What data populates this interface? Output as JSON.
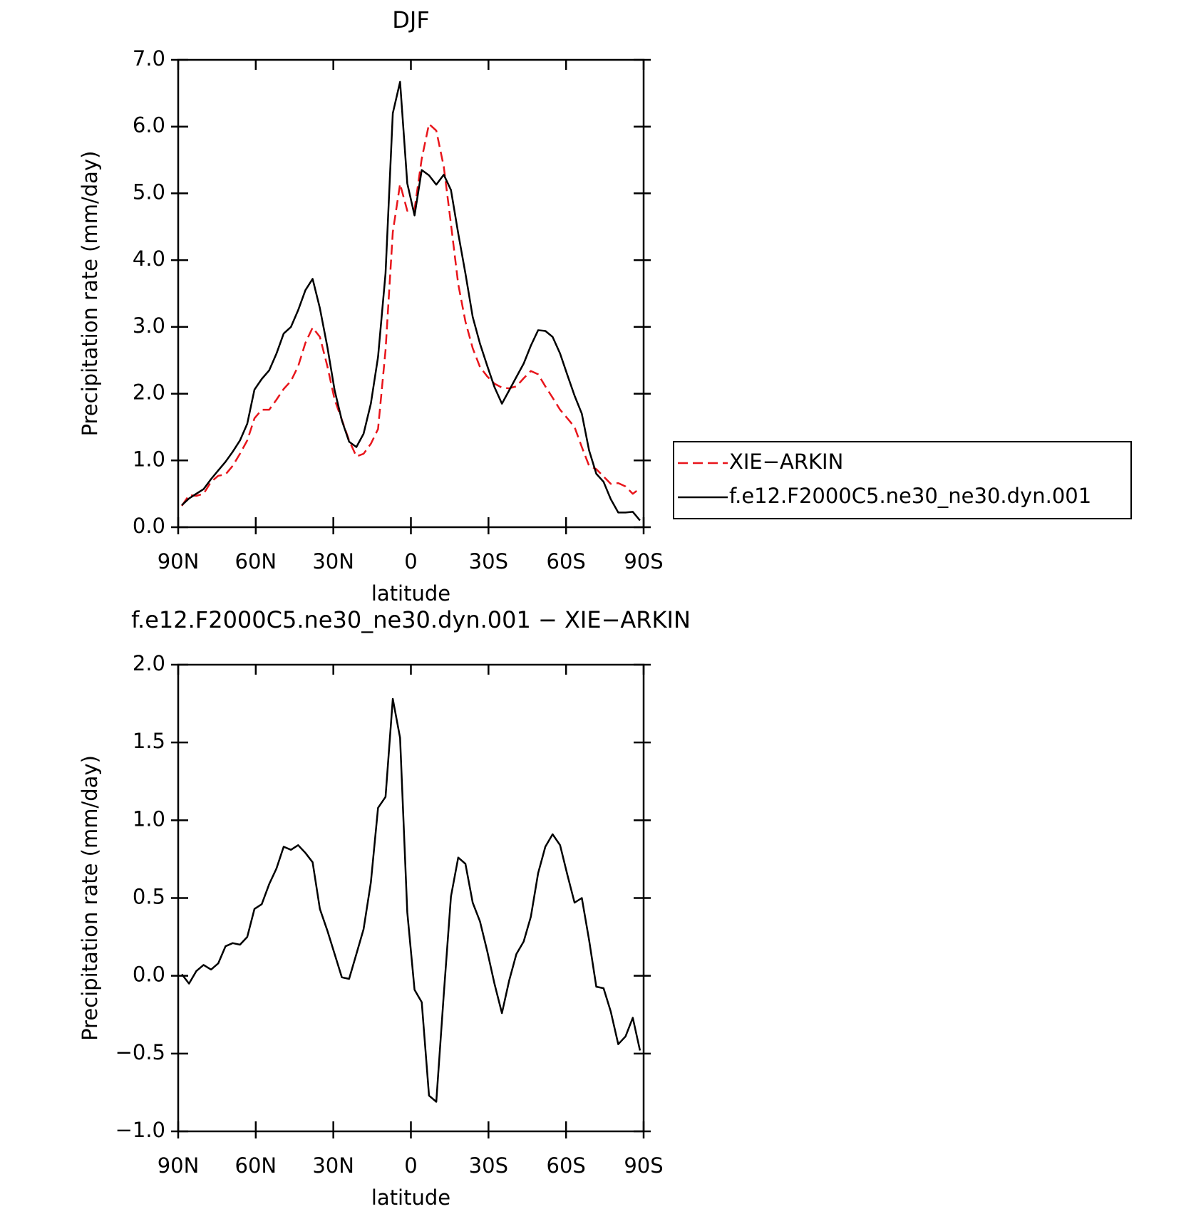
{
  "chart_data": [
    {
      "type": "line",
      "title": "DJF",
      "xlabel": "latitude",
      "ylabel": "Precipitation rate (mm/day)",
      "x": [
        88.6,
        85.8,
        83.0,
        80.2,
        77.3,
        74.5,
        71.7,
        68.9,
        66.1,
        63.3,
        60.5,
        57.7,
        54.8,
        52.0,
        49.2,
        46.4,
        43.6,
        40.8,
        38.0,
        35.2,
        32.3,
        29.5,
        26.7,
        23.9,
        21.1,
        18.3,
        15.5,
        12.7,
        9.8,
        7.0,
        4.2,
        1.4,
        -1.4,
        -4.2,
        -7.0,
        -9.8,
        -12.7,
        -15.5,
        -18.3,
        -21.1,
        -23.9,
        -26.7,
        -29.5,
        -32.3,
        -35.2,
        -38.0,
        -40.8,
        -43.6,
        -46.4,
        -49.2,
        -52.0,
        -54.8,
        -57.7,
        -60.5,
        -63.3,
        -66.1,
        -68.9,
        -71.7,
        -74.5,
        -77.3,
        -80.2,
        -83.0,
        -85.8,
        -88.6
      ],
      "series": [
        {
          "name": "XIE−ARKIN",
          "color": "#e8151b",
          "dash": true,
          "values": [
            0.32,
            0.48,
            0.47,
            0.5,
            0.68,
            0.77,
            0.79,
            0.92,
            1.1,
            1.3,
            1.63,
            1.76,
            1.76,
            1.91,
            2.07,
            2.19,
            2.41,
            2.76,
            2.99,
            2.85,
            2.41,
            1.91,
            1.61,
            1.3,
            1.06,
            1.1,
            1.25,
            1.47,
            2.65,
            4.42,
            5.14,
            4.74,
            4.76,
            5.52,
            6.04,
            5.94,
            5.4,
            4.54,
            3.64,
            3.08,
            2.68,
            2.4,
            2.26,
            2.15,
            2.09,
            2.08,
            2.11,
            2.23,
            2.34,
            2.29,
            2.11,
            1.94,
            1.76,
            1.63,
            1.5,
            1.2,
            0.92,
            0.87,
            0.76,
            0.65,
            0.66,
            0.61,
            0.5,
            0.58
          ]
        },
        {
          "name": "f.e12.F2000C5.ne30_ne30.dyn.001",
          "color": "#000000",
          "dash": false,
          "values": [
            0.33,
            0.43,
            0.5,
            0.57,
            0.72,
            0.85,
            0.98,
            1.13,
            1.3,
            1.55,
            2.06,
            2.22,
            2.35,
            2.6,
            2.9,
            3.0,
            3.25,
            3.55,
            3.72,
            3.28,
            2.7,
            2.05,
            1.6,
            1.28,
            1.2,
            1.4,
            1.85,
            2.55,
            3.8,
            6.2,
            6.67,
            5.15,
            4.67,
            5.35,
            5.27,
            5.13,
            5.28,
            5.05,
            4.4,
            3.8,
            3.15,
            2.75,
            2.42,
            2.1,
            1.85,
            2.05,
            2.25,
            2.45,
            2.72,
            2.95,
            2.94,
            2.85,
            2.6,
            2.28,
            1.97,
            1.7,
            1.15,
            0.8,
            0.68,
            0.42,
            0.22,
            0.22,
            0.23,
            0.1
          ]
        }
      ],
      "xlim": [
        90,
        -90
      ],
      "xticks": [
        {
          "value": 90,
          "label": "90N"
        },
        {
          "value": 60,
          "label": "60N"
        },
        {
          "value": 30,
          "label": "30N"
        },
        0,
        {
          "value": -30,
          "label": "30S"
        },
        {
          "value": -60,
          "label": "60S"
        },
        {
          "value": -90,
          "label": "90S"
        }
      ],
      "ylim": [
        0,
        7
      ],
      "yticks": [
        {
          "value": 0,
          "label": "0.0"
        },
        {
          "value": 1,
          "label": "1.0"
        },
        {
          "value": 2,
          "label": "2.0"
        },
        {
          "value": 3,
          "label": "3.0"
        },
        {
          "value": 4,
          "label": "4.0"
        },
        {
          "value": 5,
          "label": "5.0"
        },
        {
          "value": 6,
          "label": "6.0"
        },
        {
          "value": 7,
          "label": "7.0"
        }
      ],
      "legend": "right"
    },
    {
      "type": "line",
      "title": "f.e12.F2000C5.ne30_ne30.dyn.001 − XIE−ARKIN",
      "xlabel": "latitude",
      "ylabel": "Precipitation rate (mm/day)",
      "x": [
        88.6,
        85.8,
        83.0,
        80.2,
        77.3,
        74.5,
        71.7,
        68.9,
        66.1,
        63.3,
        60.5,
        57.7,
        54.8,
        52.0,
        49.2,
        46.4,
        43.6,
        40.8,
        38.0,
        35.2,
        32.3,
        29.5,
        26.7,
        23.9,
        21.1,
        18.3,
        15.5,
        12.7,
        9.8,
        7.0,
        4.2,
        1.4,
        -1.4,
        -4.2,
        -7.0,
        -9.8,
        -12.7,
        -15.5,
        -18.3,
        -21.1,
        -23.9,
        -26.7,
        -29.5,
        -32.3,
        -35.2,
        -38.0,
        -40.8,
        -43.6,
        -46.4,
        -49.2,
        -52.0,
        -54.8,
        -57.7,
        -60.5,
        -63.3,
        -66.1,
        -68.9,
        -71.7,
        -74.5,
        -77.3,
        -80.2,
        -83.0,
        -85.8,
        -88.6
      ],
      "color": "#000000",
      "values": [
        0.01,
        -0.05,
        0.03,
        0.07,
        0.04,
        0.08,
        0.19,
        0.21,
        0.2,
        0.25,
        0.43,
        0.46,
        0.59,
        0.69,
        0.83,
        0.81,
        0.84,
        0.79,
        0.73,
        0.43,
        0.29,
        0.14,
        -0.01,
        -0.02,
        0.14,
        0.3,
        0.6,
        1.08,
        1.15,
        1.78,
        1.53,
        0.41,
        -0.09,
        -0.17,
        -0.77,
        -0.81,
        -0.12,
        0.51,
        0.76,
        0.72,
        0.47,
        0.35,
        0.16,
        -0.05,
        -0.24,
        -0.03,
        0.14,
        0.22,
        0.38,
        0.66,
        0.83,
        0.91,
        0.84,
        0.65,
        0.47,
        0.5,
        0.23,
        -0.07,
        -0.08,
        -0.23,
        -0.44,
        -0.39,
        -0.27,
        -0.48
      ],
      "xlim": [
        90,
        -90
      ],
      "xticks": [
        {
          "value": 90,
          "label": "90N"
        },
        {
          "value": 60,
          "label": "60N"
        },
        {
          "value": 30,
          "label": "30N"
        },
        0,
        {
          "value": -30,
          "label": "30S"
        },
        {
          "value": -60,
          "label": "60S"
        },
        {
          "value": -90,
          "label": "90S"
        }
      ],
      "ylim": [
        -1,
        2
      ],
      "yticks": [
        {
          "value": -1,
          "label": "−1.0"
        },
        {
          "value": -0.5,
          "label": "−0.5"
        },
        {
          "value": 0,
          "label": "0.0"
        },
        {
          "value": 0.5,
          "label": "0.5"
        },
        {
          "value": 1,
          "label": "1.0"
        },
        {
          "value": 1.5,
          "label": "1.5"
        },
        {
          "value": 2,
          "label": "2.0"
        }
      ]
    }
  ]
}
